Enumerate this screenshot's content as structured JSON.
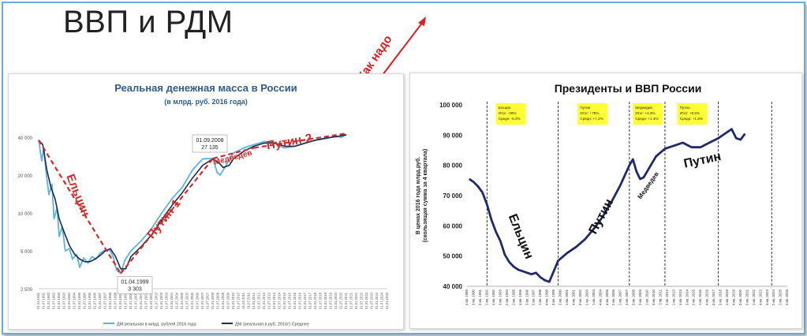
{
  "slide": {
    "title": "ВВП и РДМ",
    "arrow_label": "Как надо"
  },
  "chart_data": [
    {
      "type": "line",
      "title": "Реальная денежная масса в России",
      "subtitle": "(в млрд. руб. 2016 года)",
      "y_scale": "log",
      "ylim": [
        2500,
        45000
      ],
      "y_ticks": [
        2500,
        5000,
        10000,
        20000,
        40000
      ],
      "y_tick_labels": [
        "2 500",
        "5 000",
        "10 000",
        "20 000",
        "40 000"
      ],
      "x_tick_labels": [
        "01.01.1991",
        "01.07.1991",
        "01.01.1992",
        "01.07.1992",
        "01.01.1993",
        "01.07.1993",
        "01.01.1994",
        "01.07.1994",
        "01.01.1995",
        "01.07.1995",
        "01.01.1996",
        "01.07.1996",
        "01.01.1997",
        "01.07.1997",
        "01.01.1998",
        "01.07.1998",
        "01.01.1999",
        "01.07.1999",
        "01.01.2000",
        "01.07.2000",
        "01.01.2001",
        "01.07.2001",
        "01.01.2002",
        "01.07.2002",
        "01.01.2003",
        "01.07.2003",
        "01.01.2004",
        "01.07.2004",
        "01.01.2005",
        "01.07.2005",
        "01.01.2006",
        "01.07.2006",
        "01.01.2007",
        "01.07.2007",
        "01.01.2008",
        "01.07.2008",
        "01.01.2009",
        "01.07.2009",
        "01.01.2010",
        "01.07.2010",
        "01.01.2011",
        "01.07.2011",
        "01.01.2012",
        "01.07.2012",
        "01.01.2013",
        "01.07.2013",
        "01.01.2014",
        "01.07.2014",
        "01.01.2015",
        "01.07.2015",
        "01.01.2016",
        "01.07.2016",
        "01.01.2017",
        "01.07.2017",
        "01.01.2018",
        "01.07.2018",
        "01.01.2019",
        "01.07.2019",
        "01.01.2020",
        "01.07.2020",
        "01.01.2021",
        "01.07.2021",
        "01.01.2022",
        "01.07.2022",
        "01.01.2023",
        "01.07.2023",
        "01.01.2024",
        "01.07.2024",
        "01.01.2025"
      ],
      "xlim": [
        1991,
        2025
      ],
      "series": [
        {
          "name": "ДМ реальная в млрд. рублей 2016 года",
          "color": "#5ab4e0",
          "x": [
            1991,
            1991.3,
            1991.5,
            1991.7,
            1992,
            1992.3,
            1992.5,
            1992.8,
            1993,
            1993.3,
            1993.6,
            1994,
            1994.3,
            1994.7,
            1995,
            1995.4,
            1995.8,
            1996.2,
            1996.6,
            1997,
            1997.5,
            1998,
            1998.3,
            1998.6,
            1999,
            1999.4,
            2000,
            2001,
            2002,
            2003,
            2004,
            2005,
            2006,
            2007,
            2008,
            2008.4,
            2008.7,
            2009,
            2009.3,
            2009.6,
            2010,
            2011,
            2012,
            2013,
            2014,
            2014.5,
            2015,
            2016,
            2017,
            2018,
            2019,
            2020,
            2020.5,
            2021
          ],
          "y": [
            38000,
            26000,
            33000,
            22000,
            14000,
            17000,
            9000,
            11000,
            6500,
            7800,
            5000,
            5200,
            4300,
            4700,
            3700,
            4400,
            4000,
            4500,
            4300,
            4800,
            5100,
            5000,
            4400,
            3500,
            3303,
            4200,
            5000,
            6000,
            7500,
            10000,
            13000,
            16000,
            22000,
            27000,
            27135,
            21000,
            20000,
            22000,
            24000,
            27000,
            30000,
            33000,
            35000,
            37000,
            36000,
            34000,
            33000,
            34000,
            36000,
            38000,
            39000,
            41000,
            40000,
            42000
          ]
        },
        {
          "name": "ДМ (реальная в руб. 2016г) Среднее",
          "color": "#1f2a4d",
          "x": [
            1991,
            1991.4,
            1991.8,
            1992.2,
            1992.6,
            1993,
            1993.5,
            1994,
            1994.5,
            1995,
            1995.5,
            1996,
            1996.5,
            1997,
            1997.5,
            1998,
            1998.5,
            1999,
            1999.5,
            2000,
            2001,
            2002,
            2003,
            2004,
            2005,
            2006,
            2007,
            2008,
            2008.6,
            2009,
            2009.6,
            2010,
            2011,
            2012,
            2013,
            2014,
            2015,
            2016,
            2017,
            2018,
            2019,
            2020,
            2021
          ],
          "y": [
            38000,
            35000,
            22000,
            16000,
            13000,
            9000,
            7000,
            5500,
            4700,
            4300,
            4100,
            4100,
            4300,
            4600,
            5000,
            5200,
            4500,
            3600,
            3600,
            4500,
            5400,
            6700,
            8800,
            11500,
            14500,
            19000,
            24000,
            27000,
            25000,
            23000,
            24000,
            27000,
            31000,
            34000,
            36000,
            36000,
            34000,
            34000,
            36000,
            38000,
            39500,
            40500,
            42000
          ]
        }
      ],
      "annotations": [
        {
          "x": 1999,
          "y": 3303,
          "date": "01.04.1999",
          "value": "3 303"
        },
        {
          "x": 2008,
          "y": 27135,
          "date": "01.09.2008",
          "value": "27 135"
        }
      ],
      "trend_lines": [
        {
          "label": "Ельцин",
          "x": [
            1991,
            1999
          ],
          "y": [
            38000,
            3303
          ]
        },
        {
          "label": "Путин-1",
          "x": [
            1999,
            2008
          ],
          "y": [
            3303,
            27135
          ]
        },
        {
          "label": "Медведев",
          "x": [
            2008,
            2012
          ],
          "y": [
            27135,
            33000
          ]
        },
        {
          "label": "Путин-2",
          "x": [
            2012,
            2021
          ],
          "y": [
            33000,
            43000
          ]
        }
      ],
      "legend_position": "bottom",
      "grid": false
    },
    {
      "type": "line",
      "title": "Президенты и ВВП России",
      "ylabel": "В ценах 2016 года млрд.руб.\n(скользящая сумма за 4 квартала)",
      "ylim": [
        40000,
        100000
      ],
      "y_ticks": [
        40000,
        50000,
        60000,
        70000,
        80000,
        90000,
        100000
      ],
      "y_tick_labels": [
        "40 000",
        "50 000",
        "60 000",
        "70 000",
        "80 000",
        "90 000",
        "100 000"
      ],
      "x_tick_labels": [
        "4 кв. 1989",
        "3 кв. 1990",
        "2 кв. 1991",
        "1 кв. 1992",
        "4 кв. 1992",
        "3 кв. 1993",
        "2 кв. 1994",
        "1 кв. 1995",
        "4 кв. 1995",
        "3 кв. 1996",
        "2 кв. 1997",
        "1 кв. 1998",
        "4 кв. 1998",
        "3 кв. 1999",
        "2 кв. 2000",
        "1 кв. 2001",
        "4 кв. 2001",
        "3 кв. 2002",
        "2 кв. 2003",
        "1 кв. 2004",
        "4 кв. 2004",
        "3 кв. 2005",
        "2 кв. 2006",
        "1 кв. 2007",
        "4 кв. 2007",
        "3 кв. 2008",
        "2 кв. 2009",
        "1 кв. 2010",
        "4 кв. 2010",
        "3 кв. 2011",
        "2 кв. 2012",
        "1 кв. 2013",
        "4 кв. 2013",
        "3 кв. 2014",
        "2 кв. 2015",
        "1 кв. 2016",
        "4 кв. 2016",
        "3 кв. 2017",
        "2 кв. 2018",
        "1 кв. 2019",
        "4 кв. 2019",
        "3 кв. 2020",
        "2 кв. 2021",
        "1 кв. 2022",
        "4 кв. 2022",
        "3 кв. 2023",
        "2 кв. 2024",
        "1 кв. 2025",
        "4 кв. 2025"
      ],
      "xlim": [
        1989.75,
        2025.75
      ],
      "series": [
        {
          "name": "ВВП",
          "color": "#1f2a6b",
          "x": [
            1990,
            1990.5,
            1991,
            1991.5,
            1992,
            1992.5,
            1993,
            1993.5,
            1994,
            1994.5,
            1995,
            1995.5,
            1996,
            1996.5,
            1997,
            1997.5,
            1998,
            1998.5,
            1999,
            1999.5,
            2000,
            2001,
            2002,
            2003,
            2004,
            2005,
            2006,
            2007,
            2008,
            2008.4,
            2008.8,
            2009.2,
            2009.6,
            2010,
            2011,
            2012,
            2013,
            2014,
            2015,
            2016,
            2017,
            2018,
            2019,
            2019.5,
            2020,
            2020.5,
            2021
          ],
          "y": [
            75500,
            74500,
            73000,
            71000,
            67000,
            62000,
            58000,
            55000,
            50500,
            48000,
            46500,
            45500,
            45000,
            44500,
            44000,
            44500,
            43000,
            42000,
            41500,
            45000,
            48500,
            51000,
            53000,
            55500,
            59000,
            63000,
            68000,
            73500,
            80000,
            82000,
            78000,
            75500,
            76000,
            78000,
            83000,
            85500,
            86500,
            87500,
            86000,
            86000,
            87500,
            89000,
            91000,
            92000,
            89000,
            88500,
            90500
          ]
        }
      ],
      "presidency_boundaries_x": [
        1992,
        2000,
        2008,
        2012,
        2018,
        2024
      ],
      "notes": [
        {
          "label": "Ельцин",
          "lines": [
            "Ельцин",
            "Итог: -39%",
            "Средн: -5,2%"
          ]
        },
        {
          "label": "Путин",
          "lines": [
            "Путин",
            "Итог: +78%",
            "Средн: +7,2%"
          ]
        },
        {
          "label": "Медведев",
          "lines": [
            "Медведев",
            "Итог: +4,9%",
            "Средн: +1,4%"
          ]
        },
        {
          "label": "Путин",
          "lines": [
            "Путин",
            "Итог: +9,5%",
            "Средн: +1,8%"
          ]
        }
      ],
      "period_labels": [
        "Ельцин",
        "Путин",
        "Медведев",
        "Путин"
      ],
      "grid": false
    }
  ],
  "colors": {
    "trend_red": "#d42a2a",
    "arrow_red": "#e21c1c",
    "note_yellow": "#ffff33"
  }
}
